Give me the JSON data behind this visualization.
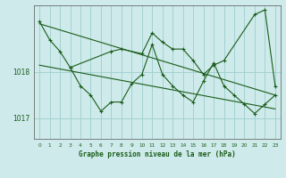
{
  "title": "Graphe pression niveau de la mer (hPa)",
  "background_color": "#ceeaea",
  "grid_color": "#9ecece",
  "line_color": "#1a5c1a",
  "xlim": [
    -0.5,
    23.5
  ],
  "ylim": [
    1016.55,
    1019.45
  ],
  "yticks": [
    1017,
    1018
  ],
  "x_ticks": [
    0,
    1,
    2,
    3,
    4,
    5,
    6,
    7,
    8,
    9,
    10,
    11,
    12,
    13,
    14,
    15,
    16,
    17,
    18,
    19,
    20,
    21,
    22,
    23
  ],
  "series1": {
    "x": [
      0,
      1,
      2,
      3,
      7,
      8,
      10,
      11,
      12,
      13,
      14,
      15,
      16,
      17,
      18,
      21,
      22,
      23
    ],
    "y": [
      1019.1,
      1018.7,
      1018.45,
      1018.1,
      1018.45,
      1018.5,
      1018.4,
      1018.85,
      1018.65,
      1018.5,
      1018.5,
      1018.25,
      1017.95,
      1018.15,
      1018.25,
      1019.25,
      1019.35,
      1017.7
    ]
  },
  "series2": {
    "x": [
      3,
      4,
      5,
      6,
      7,
      8,
      9,
      10,
      11,
      12,
      13,
      14,
      15,
      16,
      17,
      18,
      19,
      20,
      21,
      22,
      23
    ],
    "y": [
      1018.1,
      1017.7,
      1017.5,
      1017.15,
      1017.35,
      1017.35,
      1017.75,
      1017.95,
      1018.6,
      1017.95,
      1017.7,
      1017.5,
      1017.35,
      1017.8,
      1018.2,
      1017.7,
      1017.5,
      1017.3,
      1017.1,
      1017.3,
      1017.5
    ]
  },
  "trend1": {
    "x": [
      0,
      23
    ],
    "y": [
      1019.05,
      1017.5
    ]
  },
  "trend2": {
    "x": [
      0,
      23
    ],
    "y": [
      1018.15,
      1017.2
    ]
  }
}
